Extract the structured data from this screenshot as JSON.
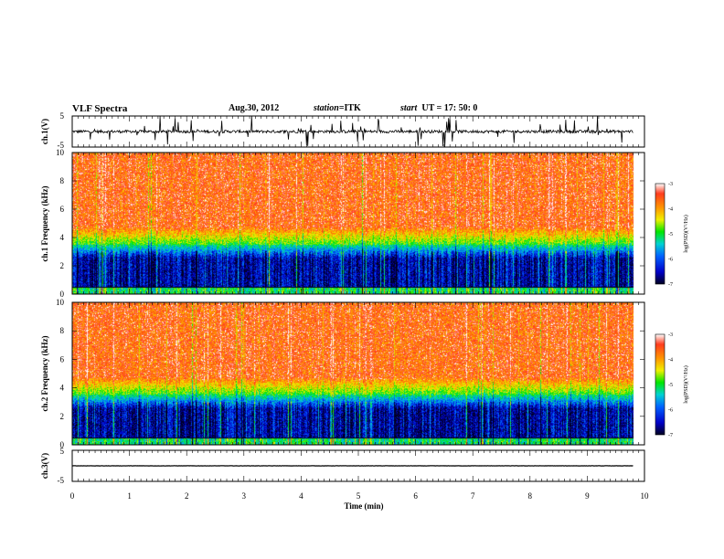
{
  "header": {
    "title": "VLF Spectra",
    "date": "Aug.30, 2012",
    "station_label": "station=",
    "station_value": "ITK",
    "start_label": "start",
    "start_value": "UT =   17: 50: 0"
  },
  "chart_data": [
    {
      "type": "line",
      "panel": "ch1-waveform",
      "ylabel": "ch.1(V)",
      "ylim": [
        -5,
        5
      ],
      "yticks": [
        "5",
        "-5"
      ],
      "xlim": [
        0,
        10
      ],
      "description_values": "noisy waveform with frequent sferic spikes",
      "baseline": 0,
      "noise_amplitude": 1,
      "spike_amplitude": 5,
      "x_extent_min": 9.8
    },
    {
      "type": "heatmap",
      "panel": "ch1-spectrogram",
      "ylabel": "ch.1  Frequency  (kHz)",
      "ylim": [
        0,
        10
      ],
      "yticks": [
        "0",
        "2",
        "4",
        "6",
        "8",
        "10"
      ],
      "xlim": [
        0,
        10
      ],
      "colorbar": {
        "label": "log(PSD)(V²/Hz)",
        "range": [
          -7,
          -3
        ],
        "ticks": [
          "-3",
          "-4",
          "-5",
          "-6",
          "-7"
        ]
      },
      "quiet_band_khz": [
        0.5,
        2.5
      ],
      "noise_floor_khz": 3.5
    },
    {
      "type": "heatmap",
      "panel": "ch2-spectrogram",
      "ylabel": "ch.2  Frequency  (kHz)",
      "ylim": [
        0,
        10
      ],
      "yticks": [
        "0",
        "2",
        "4",
        "6",
        "8",
        "10"
      ],
      "xlim": [
        0,
        10
      ],
      "colorbar": {
        "label": "log(PSD)(V²/Hz)",
        "range": [
          -7,
          -3
        ],
        "ticks": [
          "-3",
          "-4",
          "-5",
          "-6",
          "-7"
        ]
      },
      "quiet_band_khz": [
        0.5,
        2.5
      ],
      "noise_floor_khz": 3.5
    },
    {
      "type": "line",
      "panel": "ch3-waveform",
      "ylabel": "ch.3(V)",
      "ylim": [
        -5,
        5
      ],
      "yticks": [
        "5",
        "-5"
      ],
      "xlim": [
        0,
        10
      ],
      "baseline": 0
    }
  ],
  "xaxis": {
    "label": "Time  (min)",
    "ticks": [
      "0",
      "1",
      "2",
      "3",
      "4",
      "5",
      "6",
      "7",
      "8",
      "9",
      "10"
    ]
  },
  "colors": {
    "colormap": [
      "#000020",
      "#0000c8",
      "#0064ff",
      "#00d2d2",
      "#00e600",
      "#f0f000",
      "#ff9600",
      "#ff3c1e",
      "#ffffff"
    ]
  }
}
